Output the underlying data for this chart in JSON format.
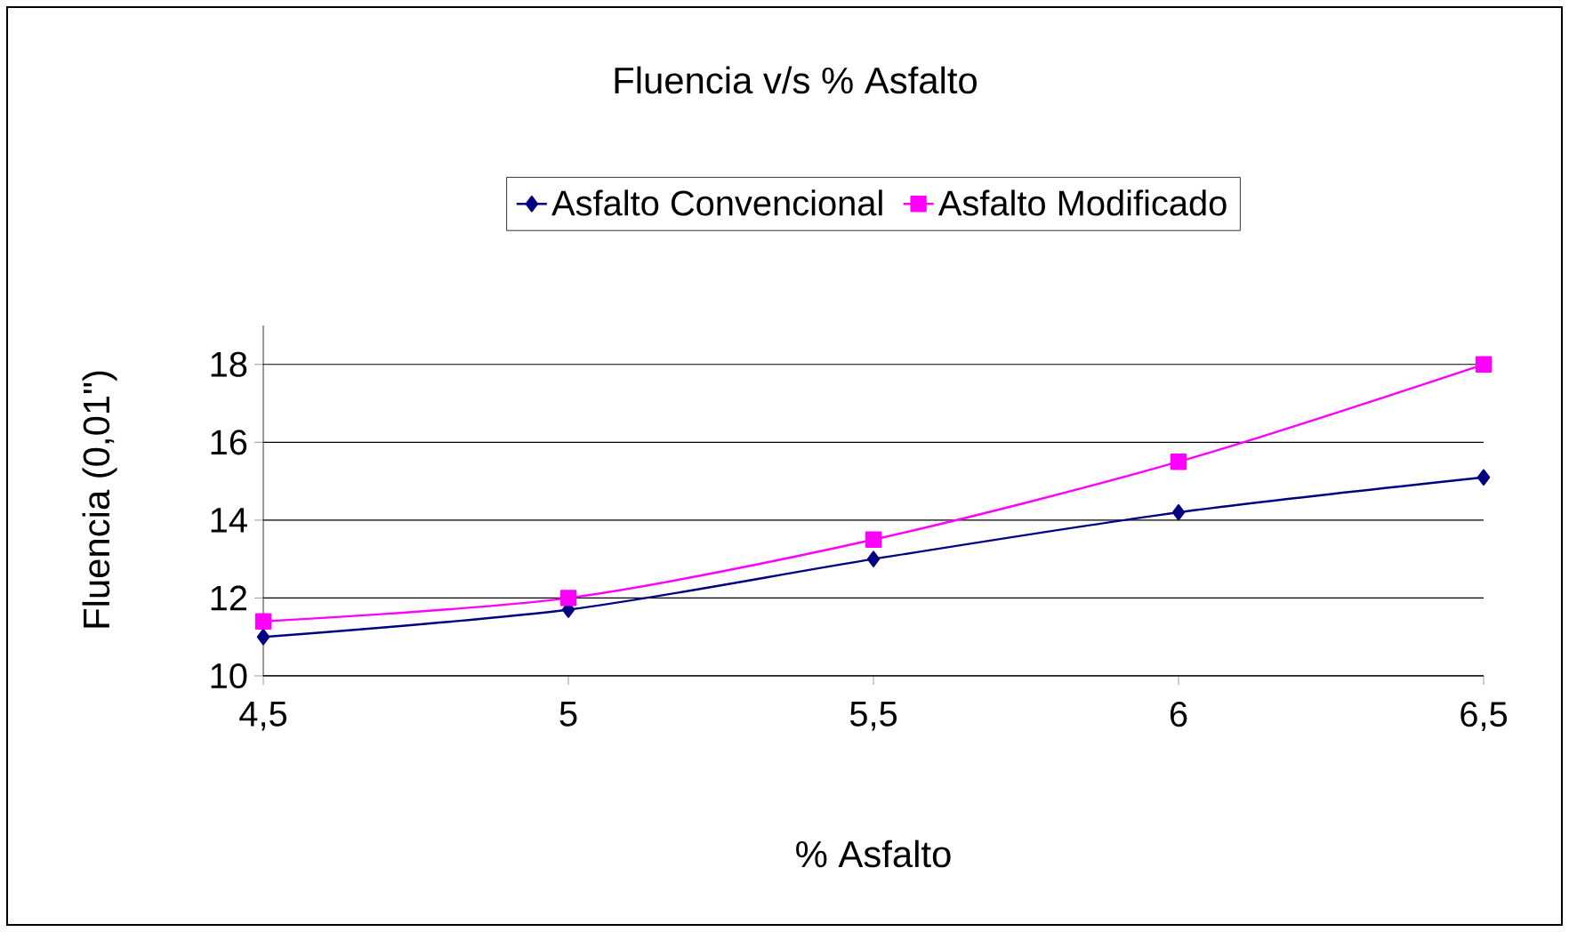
{
  "chart_data": {
    "type": "line",
    "title": "Fluencia v/s %  Asfalto",
    "xlabel": "%  Asfalto",
    "ylabel": "Fluencia (0,01\")",
    "x": [
      4.5,
      5,
      5.5,
      6,
      6.5
    ],
    "series": [
      {
        "name": "Asfalto Convencional",
        "color": "#000080",
        "marker": "diamond",
        "values": [
          11.0,
          11.7,
          13.0,
          14.2,
          15.1
        ]
      },
      {
        "name": "Asfalto Modificado",
        "color": "#ff00ff",
        "marker": "square",
        "values": [
          11.4,
          12.0,
          13.5,
          15.5,
          18.0
        ]
      }
    ],
    "xlim": [
      4.5,
      6.5
    ],
    "xticks": [
      {
        "value": 4.5,
        "label": "4,5"
      },
      5,
      {
        "value": 5.5,
        "label": "5,5"
      },
      6,
      {
        "value": 6.5,
        "label": "6,5"
      }
    ],
    "ylim": [
      10,
      19
    ],
    "yticks": [
      10,
      12,
      14,
      16,
      18
    ],
    "grid": "y",
    "legend": "top",
    "line_style": "solid"
  }
}
